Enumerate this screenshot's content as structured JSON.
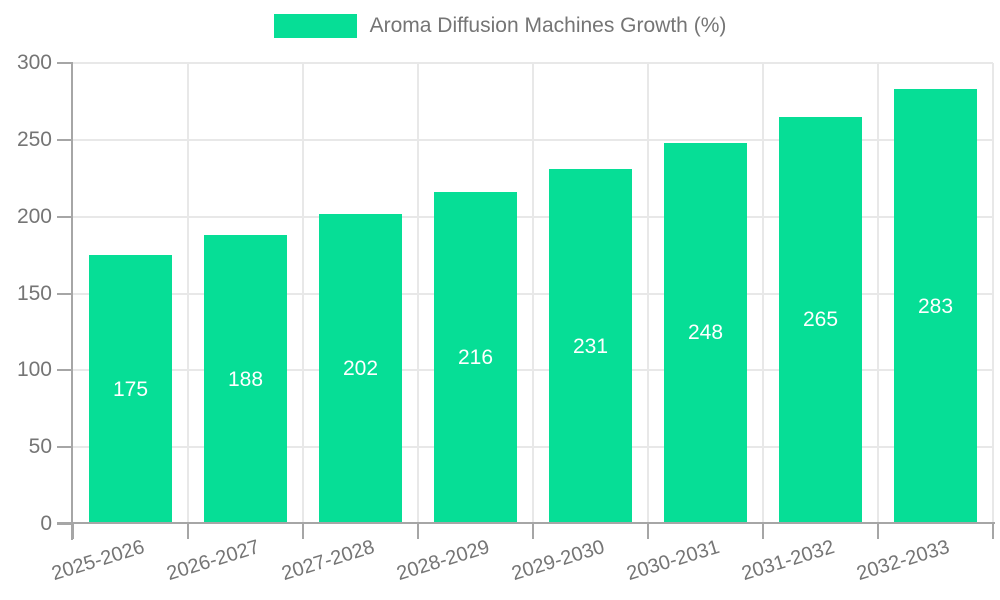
{
  "chart_data": {
    "type": "bar",
    "title": "Aroma Diffusion Machines Growth (%)",
    "categories": [
      "2025-2026",
      "2026-2027",
      "2027-2028",
      "2028-2029",
      "2029-2030",
      "2030-2031",
      "2031-2032",
      "2032-2033"
    ],
    "series": [
      {
        "name": "Aroma Diffusion Machines Growth (%)",
        "values": [
          175,
          188,
          202,
          216,
          231,
          248,
          265,
          283
        ]
      }
    ],
    "xlabel": "",
    "ylabel": "",
    "ylim": [
      0,
      300
    ],
    "yticks": [
      0,
      50,
      100,
      150,
      200,
      250,
      300
    ],
    "grid": true,
    "legend_position": "top-center",
    "x_label_rotation_deg": -17,
    "colors": {
      "bar": "#06de96",
      "value_label": "#ffffff",
      "axis_text": "#757575",
      "legend_text": "#757575",
      "gridline": "#e8e8e8",
      "axis_line": "#a6a6a6",
      "background": "#ffffff"
    }
  }
}
